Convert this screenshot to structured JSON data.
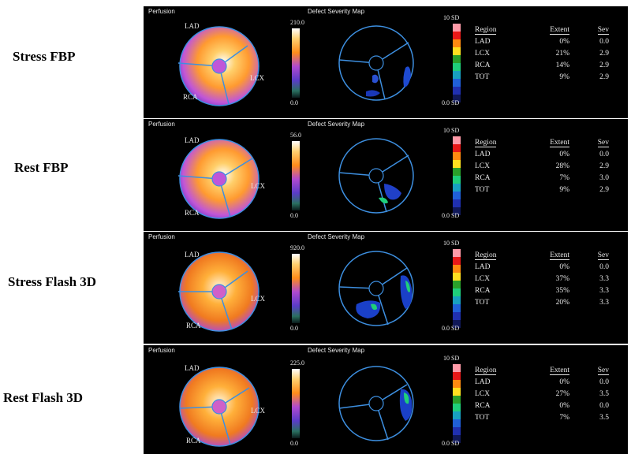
{
  "headers": {
    "perfusion": "Perfusion",
    "defect": "Defect Severity Map"
  },
  "table_headers": {
    "region": "Region",
    "extent": "Extent",
    "sev": "Sev"
  },
  "scale_bottom": "0.0",
  "severity": {
    "top": "10 SD",
    "bottom": "0.0 SD"
  },
  "regions": {
    "lad": "LAD",
    "lcx": "LCX",
    "rca": "RCA"
  },
  "colors": {
    "panel_bg": "#000000",
    "circle": "#3d8fe0"
  },
  "panels": [
    {
      "label": "Stress FBP",
      "scale_max": "210.0",
      "rows": [
        {
          "region": "LAD",
          "extent": "0%",
          "sev": "0.0"
        },
        {
          "region": "LCX",
          "extent": "21%",
          "sev": "2.9"
        },
        {
          "region": "RCA",
          "extent": "14%",
          "sev": "2.9"
        },
        {
          "region": "TOT",
          "extent": "9%",
          "sev": "2.9"
        }
      ]
    },
    {
      "label": "Rest FBP",
      "scale_max": "56.0",
      "rows": [
        {
          "region": "LAD",
          "extent": "0%",
          "sev": "0.0"
        },
        {
          "region": "LCX",
          "extent": "28%",
          "sev": "2.9"
        },
        {
          "region": "RCA",
          "extent": "7%",
          "sev": "3.0"
        },
        {
          "region": "TOT",
          "extent": "9%",
          "sev": "2.9"
        }
      ]
    },
    {
      "label": "Stress Flash 3D",
      "scale_max": "920.0",
      "rows": [
        {
          "region": "LAD",
          "extent": "0%",
          "sev": "0.0"
        },
        {
          "region": "LCX",
          "extent": "37%",
          "sev": "3.3"
        },
        {
          "region": "RCA",
          "extent": "35%",
          "sev": "3.3"
        },
        {
          "region": "TOT",
          "extent": "20%",
          "sev": "3.3"
        }
      ]
    },
    {
      "label": "Rest Flash 3D",
      "scale_max": "225.0",
      "rows": [
        {
          "region": "LAD",
          "extent": "0%",
          "sev": "0.0"
        },
        {
          "region": "LCX",
          "extent": "27%",
          "sev": "3.5"
        },
        {
          "region": "RCA",
          "extent": "0%",
          "sev": "0.0"
        },
        {
          "region": "TOT",
          "extent": "7%",
          "sev": "3.5"
        }
      ]
    }
  ]
}
